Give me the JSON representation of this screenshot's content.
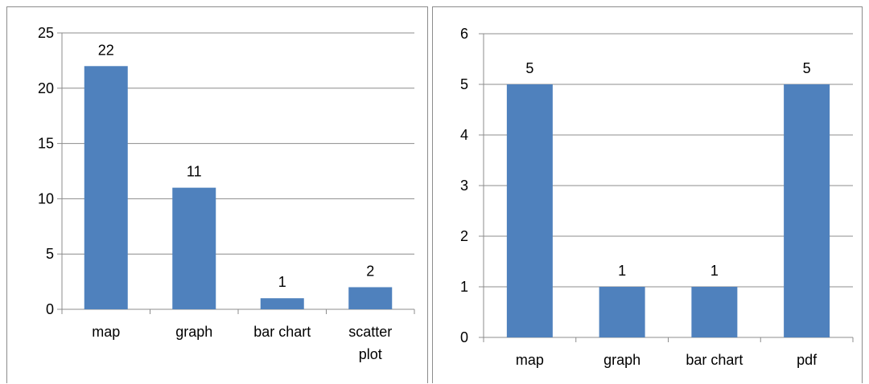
{
  "chart_data": [
    {
      "type": "bar",
      "categories": [
        [
          "map"
        ],
        [
          "graph"
        ],
        [
          "bar chart"
        ],
        [
          "scatter",
          "plot"
        ]
      ],
      "values": [
        22,
        11,
        1,
        2
      ],
      "data_labels": [
        "22",
        "11",
        "1",
        "2"
      ],
      "yticks": [
        "0",
        "5",
        "10",
        "15",
        "20",
        "25"
      ],
      "ylim": [
        0,
        25
      ],
      "grid": true,
      "bar_color": "#4f81bd"
    },
    {
      "type": "bar",
      "categories": [
        [
          "map"
        ],
        [
          "graph"
        ],
        [
          "bar chart"
        ],
        [
          "pdf"
        ]
      ],
      "values": [
        5,
        1,
        1,
        5
      ],
      "data_labels": [
        "5",
        "1",
        "1",
        "5"
      ],
      "yticks": [
        "0",
        "1",
        "2",
        "3",
        "4",
        "5",
        "6"
      ],
      "ylim": [
        0,
        6
      ],
      "grid": true,
      "bar_color": "#4f81bd"
    }
  ]
}
